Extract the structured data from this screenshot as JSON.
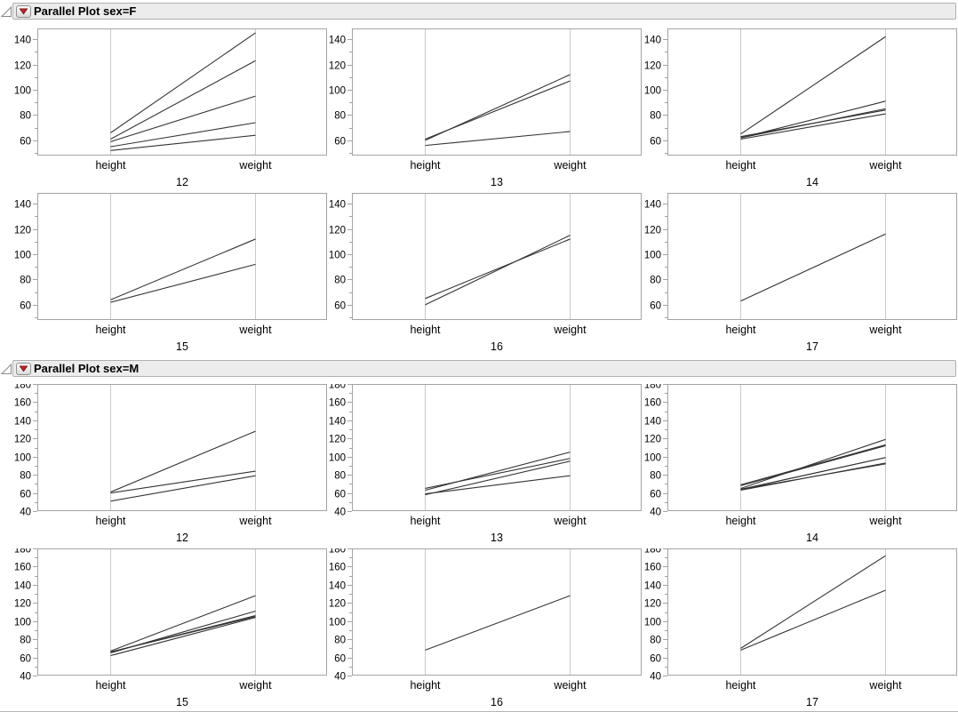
{
  "window": {
    "background": "#ffffff"
  },
  "icons": {
    "disclosure_open_icon": "open outline triangle",
    "red_triangle_menu_icon": "red triangle pointing down"
  },
  "colors": {
    "header_band_bg": "#ececec",
    "header_band_border": "#b0b0b0",
    "panel_border": "#a3a3a3",
    "axis_line": "#c9c9c9",
    "tick": "#a3a3a3",
    "data_line": "#333333",
    "red_triangle": "#c8262c",
    "red_triangle_border": "#7a1216",
    "text": "#000000"
  },
  "chart_data": [
    {
      "type": "line",
      "title": "Parallel Plot sex=F",
      "group": "F",
      "x_categories": [
        "height",
        "weight"
      ],
      "ylim": [
        48,
        148.5
      ],
      "yticks": [
        60,
        80,
        100,
        120,
        140
      ],
      "minor_tick_step": 10,
      "grid": false,
      "legend": "none",
      "panels": [
        {
          "label": "12",
          "lines": [
            [
              59,
              95
            ],
            [
              61,
              123
            ],
            [
              55,
              74
            ],
            [
              66,
              145
            ],
            [
              52,
              64
            ]
          ]
        },
        {
          "label": "13",
          "lines": [
            [
              60,
              112
            ],
            [
              61,
              107
            ],
            [
              56,
              67
            ]
          ]
        },
        {
          "label": "14",
          "lines": [
            [
              61,
              81
            ],
            [
              62,
              91
            ],
            [
              65,
              142
            ],
            [
              63,
              84
            ],
            [
              62,
              85
            ]
          ]
        },
        {
          "label": "15",
          "lines": [
            [
              62,
              92
            ],
            [
              64,
              112
            ]
          ]
        },
        {
          "label": "16",
          "lines": [
            [
              65,
              112
            ],
            [
              60,
              115
            ]
          ]
        },
        {
          "label": "17",
          "lines": [
            [
              63,
              116
            ]
          ]
        }
      ]
    },
    {
      "type": "line",
      "title": "Parallel Plot sex=M",
      "group": "M",
      "x_categories": [
        "height",
        "weight"
      ],
      "ylim": [
        40,
        180
      ],
      "yticks": [
        40,
        60,
        80,
        100,
        120,
        140,
        160,
        180
      ],
      "minor_tick_step": 10,
      "grid": false,
      "legend": "none",
      "panels": [
        {
          "label": "12",
          "lines": [
            [
              60,
              84
            ],
            [
              61,
              128
            ],
            [
              51,
              79
            ]
          ]
        },
        {
          "label": "13",
          "lines": [
            [
              65,
              98
            ],
            [
              63,
              105
            ],
            [
              58,
              95
            ],
            [
              59,
              79
            ]
          ]
        },
        {
          "label": "14",
          "lines": [
            [
              63,
              93
            ],
            [
              64,
              99
            ],
            [
              65,
              119
            ],
            [
              64,
              92
            ],
            [
              68,
              112
            ],
            [
              64,
              99
            ],
            [
              69,
              113
            ]
          ]
        },
        {
          "label": "15",
          "lines": [
            [
              67,
              128
            ],
            [
              65,
              111
            ],
            [
              66,
              105
            ],
            [
              62,
              104
            ],
            [
              66,
              106
            ]
          ]
        },
        {
          "label": "16",
          "lines": [
            [
              68,
              128
            ]
          ]
        },
        {
          "label": "17",
          "lines": [
            [
              68,
              134
            ],
            [
              70,
              172
            ]
          ]
        }
      ]
    }
  ]
}
